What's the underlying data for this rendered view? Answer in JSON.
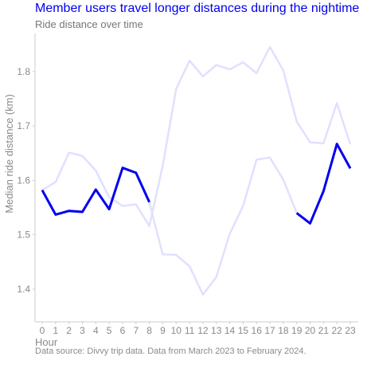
{
  "chart_data": {
    "type": "line",
    "title": "Member users travel longer distances during the nightime",
    "subtitle": "Ride distance over time",
    "xlabel": "Hour",
    "ylabel": "Median ride distance (km)",
    "caption": "Data source: Divvy trip data. Data from March 2023 to February 2024.",
    "x": [
      0,
      1,
      2,
      3,
      4,
      5,
      6,
      7,
      8,
      9,
      10,
      11,
      12,
      13,
      14,
      15,
      16,
      17,
      18,
      19,
      20,
      21,
      22,
      23
    ],
    "xlim": [
      0,
      23
    ],
    "ylim": [
      1.34,
      1.87
    ],
    "yticks": [
      1.4,
      1.5,
      1.6,
      1.7,
      1.8
    ],
    "ytick_labels": [
      "1.4",
      "1.5",
      "1.6",
      "1.7",
      "1.8"
    ],
    "grid": false,
    "colors": {
      "highlight": "#0000ee",
      "faded": "#e0e0ff"
    },
    "series": [
      {
        "role": "faded",
        "values": [
          1.582,
          1.597,
          1.651,
          1.645,
          1.618,
          1.569,
          1.553,
          1.556,
          1.516,
          1.627,
          1.768,
          1.82,
          1.791,
          1.812,
          1.804,
          1.817,
          1.797,
          1.845,
          1.802,
          1.708,
          1.67,
          1.668,
          1.742,
          1.666
        ]
      },
      {
        "role": "faded",
        "values": [
          1.58,
          1.537,
          1.543,
          1.541,
          1.583,
          1.547,
          1.622,
          1.613,
          1.559,
          1.464,
          1.463,
          1.442,
          1.39,
          1.422,
          1.502,
          1.553,
          1.638,
          1.642,
          1.601,
          1.54,
          1.521,
          1.579,
          1.667,
          1.622
        ]
      },
      {
        "role": "highlight",
        "values": [
          1.582,
          1.537,
          1.544,
          1.542,
          1.583,
          1.547,
          1.623,
          1.614,
          1.56,
          null,
          null,
          null,
          null,
          null,
          null,
          null,
          null,
          null,
          null,
          1.54,
          1.521,
          1.58,
          1.667,
          1.622
        ]
      }
    ]
  }
}
